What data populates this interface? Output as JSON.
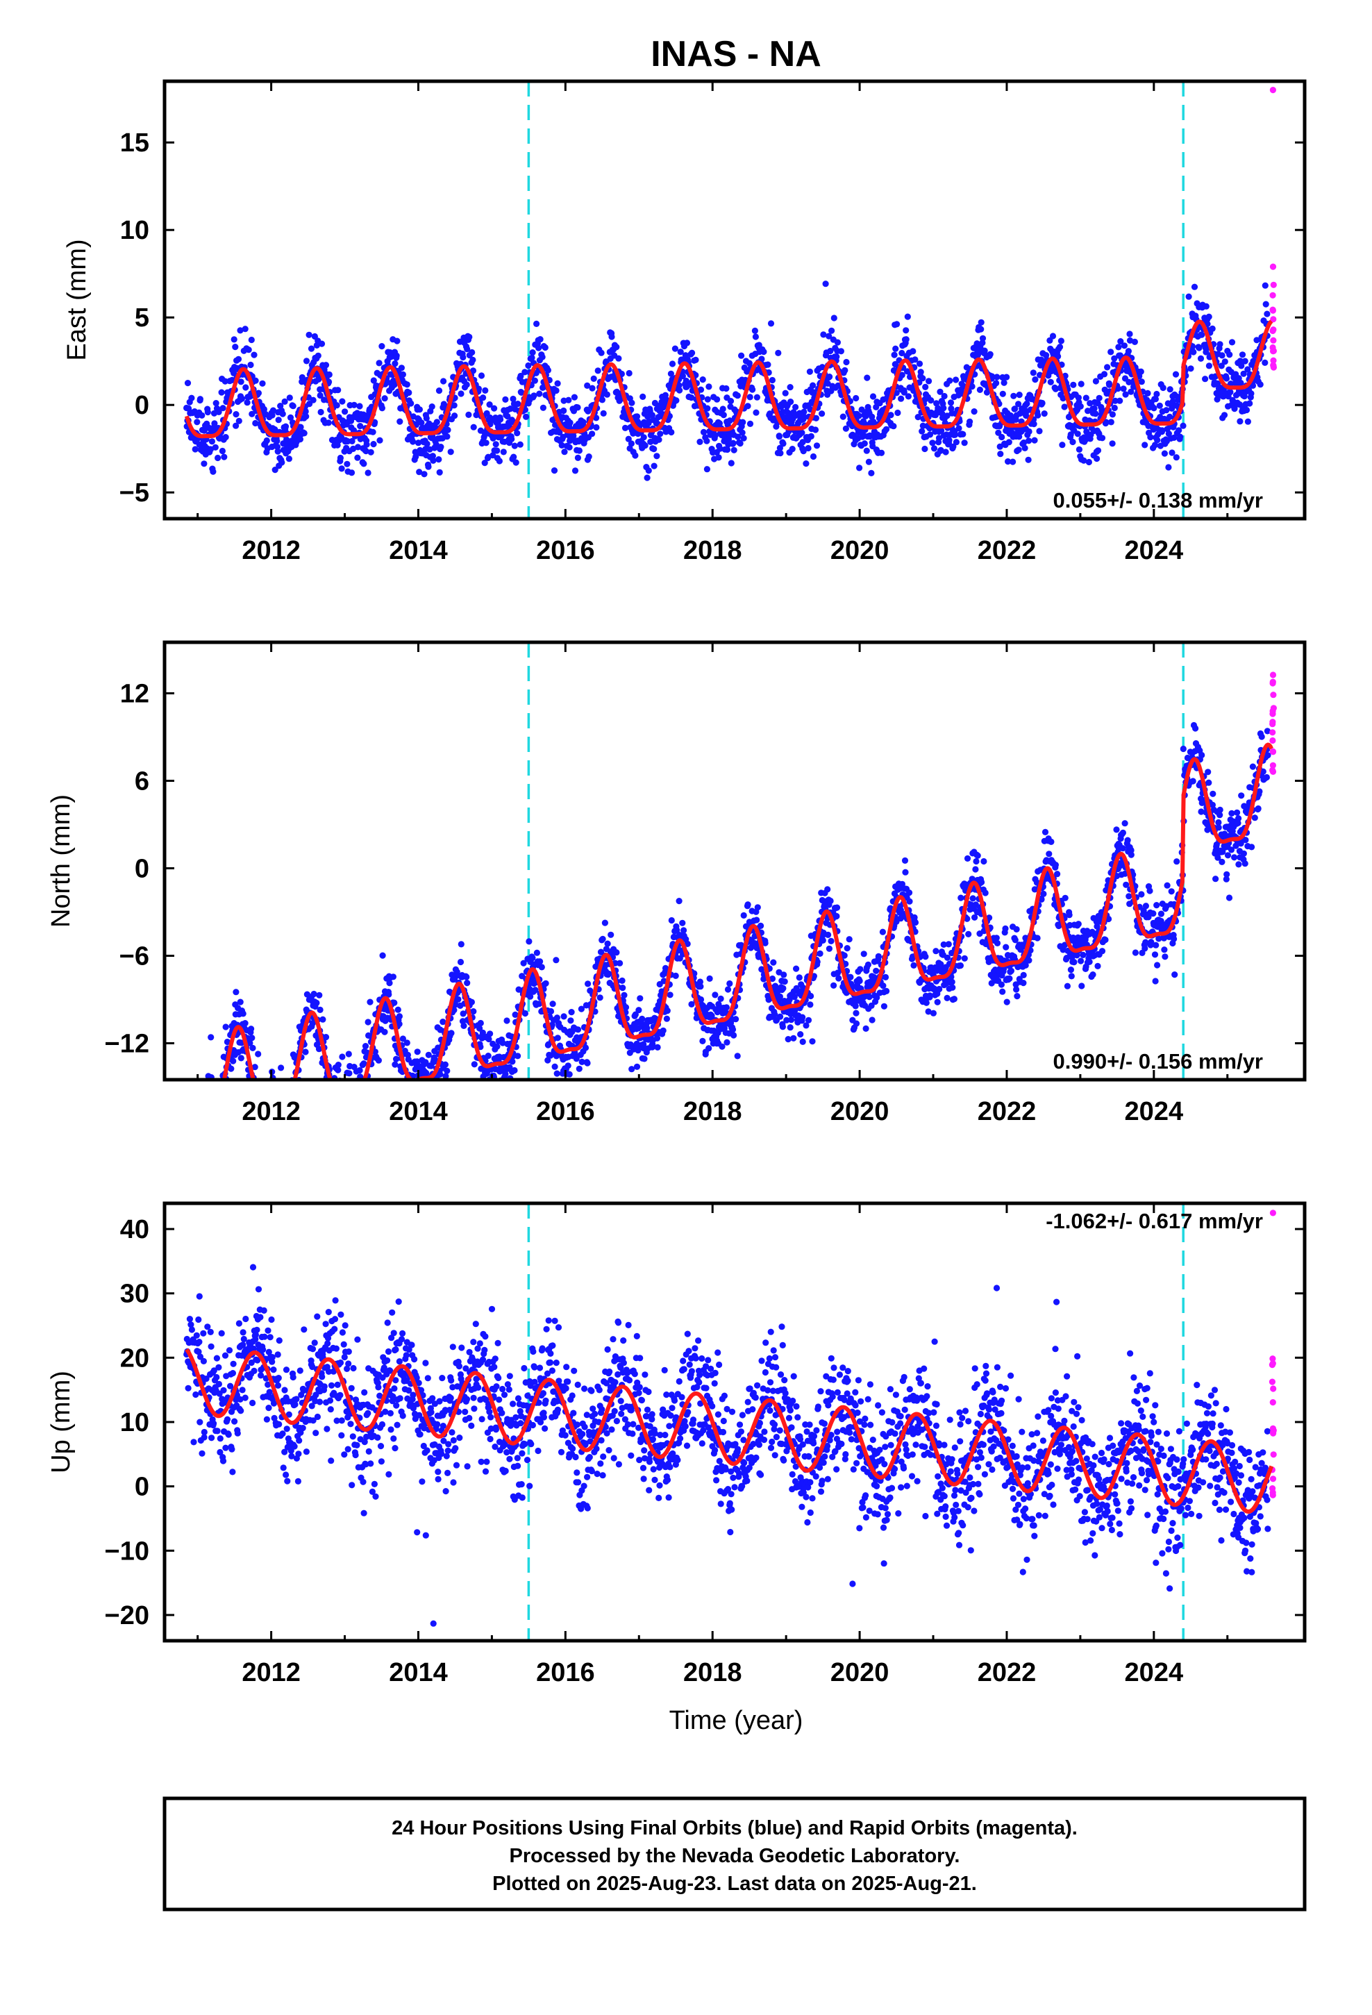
{
  "title": "INAS - NA",
  "xlabel": "Time (year)",
  "caption": [
    "24 Hour Positions Using Final Orbits (blue) and Rapid Orbits (magenta).",
    "Processed by the Nevada Geodetic Laboratory.",
    "Plotted on 2025-Aug-23. Last data on 2025-Aug-21."
  ],
  "colors": {
    "final_orbit_points": "#1414ff",
    "rapid_orbit_points": "#ff1aff",
    "model_fit": "#ff1a1a",
    "events": "#1fd8e0"
  },
  "chart_data": [
    {
      "type": "scatter",
      "ylabel": "East (mm)",
      "xlim": [
        2010.55,
        2026.05
      ],
      "ylim": [
        -6.5,
        18.5
      ],
      "xticks": [
        2012,
        2014,
        2016,
        2018,
        2020,
        2022,
        2024
      ],
      "xtick_labels": [
        "2012",
        "2014",
        "2016",
        "2018",
        "2020",
        "2022",
        "2024"
      ],
      "yticks": [
        -5,
        0,
        5,
        10,
        15
      ],
      "ytick_labels": [
        "−5",
        "0",
        "5",
        "10",
        "15"
      ],
      "rate_label": "0.055+/- 0.138 mm/yr",
      "event_lines": [
        2015.5,
        2024.4
      ],
      "model": {
        "x_start": 2010.85,
        "x_end": 2025.6,
        "rate_mm_per_yr": 0.055,
        "offset": 0.0,
        "annual_amplitude": 1.9,
        "semiannual_amplitude": 0.5,
        "peak_phase": 0.62,
        "steps": [
          {
            "year": 2024.4,
            "size": 2.0
          }
        ]
      },
      "scatter": {
        "x_start": 2010.85,
        "x_end": 2025.55,
        "points": 2600,
        "noise_sd": 1.0,
        "rapid": {
          "x": 2025.62,
          "y_range": [
            2.0,
            8.2
          ],
          "count": 16,
          "outliers": [
            18.0
          ]
        }
      }
    },
    {
      "type": "scatter",
      "ylabel": "North (mm)",
      "xlim": [
        2010.55,
        2026.05
      ],
      "ylim": [
        -14.5,
        15.5
      ],
      "xticks": [
        2012,
        2014,
        2016,
        2018,
        2020,
        2022,
        2024
      ],
      "xtick_labels": [
        "2012",
        "2014",
        "2016",
        "2018",
        "2020",
        "2022",
        "2024"
      ],
      "yticks": [
        -12,
        -6,
        0,
        6,
        12
      ],
      "ytick_labels": [
        "−12",
        "−6",
        "0",
        "6",
        "12"
      ],
      "rate_label": "0.990+/- 0.156 mm/yr",
      "event_lines": [
        2015.5,
        2024.4
      ],
      "model": {
        "x_start": 2010.85,
        "x_end": 2025.6,
        "rate_mm_per_yr": 0.99,
        "offset": -8.4,
        "annual_amplitude": 3.0,
        "semiannual_amplitude": 0.9,
        "peak_phase": 0.55,
        "steps": [
          {
            "year": 2024.4,
            "size": 5.5
          }
        ]
      },
      "scatter": {
        "x_start": 2010.85,
        "x_end": 2025.55,
        "points": 2600,
        "noise_sd": 1.1,
        "rapid": {
          "x": 2025.62,
          "y_range": [
            6.5,
            13.5
          ],
          "count": 16,
          "outliers": []
        }
      }
    },
    {
      "type": "scatter",
      "ylabel": "Up (mm)",
      "xlim": [
        2010.55,
        2026.05
      ],
      "ylim": [
        -24,
        44
      ],
      "xticks": [
        2012,
        2014,
        2016,
        2018,
        2020,
        2022,
        2024
      ],
      "xtick_labels": [
        "2012",
        "2014",
        "2016",
        "2018",
        "2020",
        "2022",
        "2024"
      ],
      "yticks": [
        -20,
        -10,
        0,
        10,
        20,
        30,
        40
      ],
      "ytick_labels": [
        "−20",
        "−10",
        "0",
        "10",
        "20",
        "30",
        "40"
      ],
      "rate_label": "-1.062+/- 0.617 mm/yr",
      "event_lines": [
        2015.5,
        2024.4
      ],
      "model": {
        "x_start": 2010.85,
        "x_end": 2025.6,
        "rate_mm_per_yr": -1.062,
        "offset": 9.0,
        "annual_amplitude": 5.2,
        "semiannual_amplitude": 0.0,
        "peak_phase": 0.78,
        "steps": []
      },
      "scatter": {
        "x_start": 2010.85,
        "x_end": 2025.55,
        "points": 2600,
        "noise_sd": 4.8,
        "rapid": {
          "x": 2025.62,
          "y_range": [
            -3.0,
            20.0
          ],
          "count": 16,
          "outliers": [
            42.5
          ]
        }
      }
    }
  ]
}
